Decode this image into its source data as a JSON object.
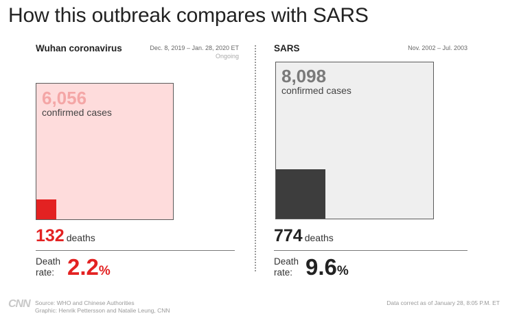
{
  "title": "How this outbreak compares with SARS",
  "chart_data": {
    "type": "proportional-area",
    "panels": [
      {
        "name": "Wuhan coronavirus",
        "period": "Dec. 8, 2019 – Jan. 28, 2020 ET",
        "status": "Ongoing",
        "confirmed_cases": 6056,
        "confirmed_cases_display": "6,056",
        "cases_label": "confirmed cases",
        "deaths": 132,
        "deaths_display": "132",
        "deaths_label": "deaths",
        "death_rate_label": "Death rate:",
        "death_rate_line1": "Death",
        "death_rate_line2": "rate:",
        "death_rate_pct": 2.2,
        "death_rate_display": "2.2",
        "pct_sign": "%",
        "cases_color": "#fedcdc",
        "deaths_color": "#e32222"
      },
      {
        "name": "SARS",
        "period": "Nov. 2002 – Jul. 2003",
        "status": "",
        "confirmed_cases": 8098,
        "confirmed_cases_display": "8,098",
        "cases_label": "confirmed cases",
        "deaths": 774,
        "deaths_display": "774",
        "deaths_label": "deaths",
        "death_rate_label": "Death rate:",
        "death_rate_line1": "Death",
        "death_rate_line2": "rate:",
        "death_rate_pct": 9.6,
        "death_rate_display": "9.6",
        "pct_sign": "%",
        "cases_color": "#efefef",
        "deaths_color": "#3d3d3d"
      }
    ]
  },
  "footer": {
    "logo": "CNN",
    "source": "Source: WHO and Chinese Authorities",
    "graphic": "Graphic: Henrik Pettersson and Natalie Leung, CNN",
    "data_note": "Data correct as of January 28, 8:05 P.M. ET"
  }
}
